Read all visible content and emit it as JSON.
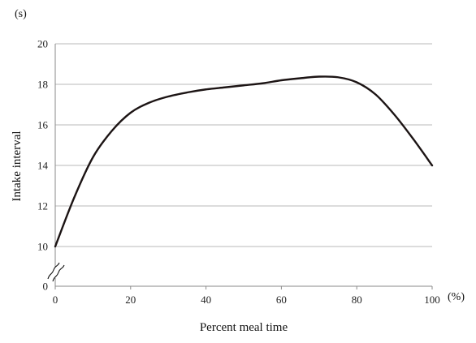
{
  "chart_data": {
    "type": "line",
    "title": "",
    "xlabel": "Percent meal time",
    "ylabel": "Intake interval",
    "x_unit": "(%)",
    "y_unit": "(s)",
    "xlim": [
      0,
      100
    ],
    "ylim": [
      10,
      20
    ],
    "axis_break": true,
    "y_origin_label": "0",
    "x_ticks": [
      "0",
      "20",
      "40",
      "60",
      "80",
      "100"
    ],
    "y_ticks": [
      "10",
      "12",
      "14",
      "16",
      "18",
      "20"
    ],
    "grid": "horizontal",
    "legend": "none",
    "colors": {
      "line": "#1c1414",
      "grid": "#b8b8b8",
      "axis": "#8a8a8a"
    },
    "series": [
      {
        "x": [
          0,
          5,
          10,
          15,
          20,
          25,
          30,
          35,
          40,
          45,
          50,
          55,
          60,
          65,
          70,
          75,
          80,
          85,
          90,
          95,
          100
        ],
        "values": [
          10.0,
          12.4,
          14.4,
          15.7,
          16.6,
          17.1,
          17.4,
          17.6,
          17.75,
          17.85,
          17.95,
          18.05,
          18.2,
          18.3,
          18.38,
          18.35,
          18.1,
          17.5,
          16.5,
          15.3,
          14.0
        ]
      }
    ]
  }
}
